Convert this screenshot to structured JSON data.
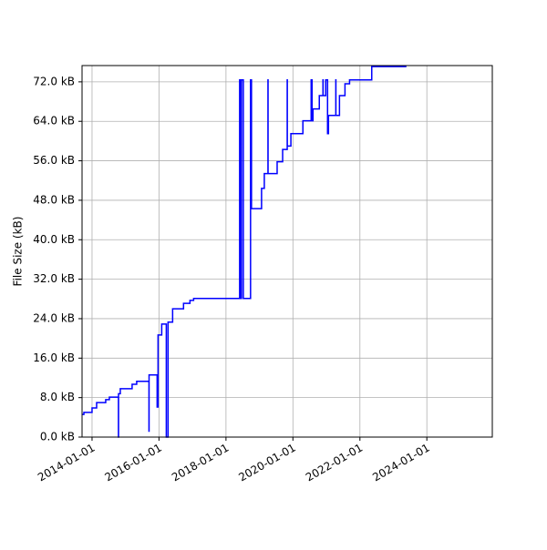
{
  "chart_data": {
    "type": "line",
    "y_label": "File Size (kB)",
    "x": [
      "2013-09-14",
      "2013-10-04",
      "2014-01-01",
      "2014-02-20",
      "2014-05-30",
      "2014-07-09",
      "2014-10-16",
      "2014-10-17",
      "2014-11-05",
      "2015-03-14",
      "2015-05-03",
      "2015-09-14",
      "2015-09-15",
      "2015-12-12",
      "2015-12-22",
      "2016-01-31",
      "2016-03-21",
      "2016-04-09",
      "2016-05-29",
      "2016-09-25",
      "2016-12-04",
      "2017-01-13",
      "2018-05-30",
      "2018-06-09",
      "2018-06-19",
      "2018-07-09",
      "2018-09-26",
      "2018-10-06",
      "2019-01-24",
      "2019-02-23",
      "2019-04-04",
      "2019-04-05",
      "2019-07-13",
      "2019-09-11",
      "2019-10-31",
      "2019-11-01",
      "2019-12-10",
      "2020-04-19",
      "2020-07-18",
      "2020-07-28",
      "2020-08-07",
      "2020-10-15",
      "2020-11-24",
      "2020-11-25",
      "2020-12-24",
      "2021-01-13",
      "2021-01-23",
      "2021-04-13",
      "2021-04-14",
      "2021-05-23",
      "2021-07-22",
      "2021-09-10",
      "2022-05-10",
      "2023-05-23"
    ],
    "series": [
      {
        "color": "#0000ff",
        "values": [
          4.6,
          5.0,
          5.9,
          7.0,
          7.6,
          8.1,
          0,
          8.8,
          9.8,
          10.7,
          11.3,
          1.2,
          12.6,
          6.1,
          20.7,
          22.9,
          0,
          23.3,
          26.0,
          27.1,
          27.7,
          28.1,
          72.4,
          28.1,
          72.4,
          28.1,
          72.4,
          46.3,
          50.4,
          53.4,
          72.4,
          53.4,
          55.8,
          58.3,
          72.4,
          59.0,
          61.5,
          64.1,
          72.4,
          64.1,
          66.5,
          69.2,
          72.4,
          69.2,
          72.4,
          61.5,
          65.2,
          72.4,
          65.2,
          69.2,
          71.6,
          72.4,
          75.1,
          75.1
        ]
      }
    ],
    "xlim": [
      "2013-09-14",
      "2025-12-15"
    ],
    "xticks": [
      "2014-01-01",
      "2016-01-01",
      "2018-01-01",
      "2020-01-01",
      "2022-01-01",
      "2024-01-01"
    ],
    "ylim": [
      0,
      75.3
    ],
    "yticks": [
      {
        "value": 0,
        "label": "0.0 kB"
      },
      {
        "value": 8,
        "label": "8.0 kB"
      },
      {
        "value": 16,
        "label": "16.0 kB"
      },
      {
        "value": 24,
        "label": "24.0 kB"
      },
      {
        "value": 32,
        "label": "32.0 kB"
      },
      {
        "value": 40,
        "label": "40.0 kB"
      },
      {
        "value": 48,
        "label": "48.0 kB"
      },
      {
        "value": 56,
        "label": "56.0 kB"
      },
      {
        "value": 64,
        "label": "64.0 kB"
      },
      {
        "value": 72,
        "label": "72.0 kB"
      }
    ],
    "grid": true,
    "step": "post"
  }
}
